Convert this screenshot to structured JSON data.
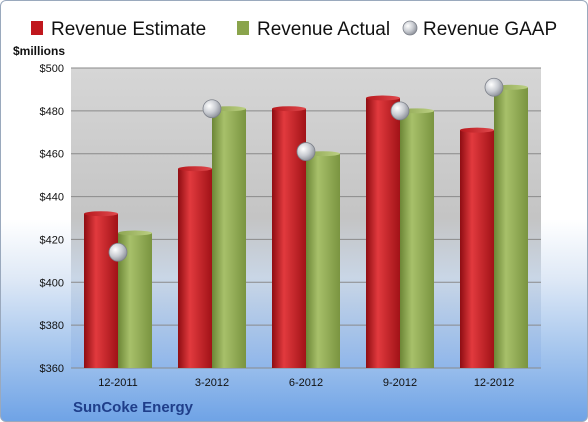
{
  "chart_data": {
    "type": "bar",
    "categories": [
      "12-2011",
      "3-2012",
      "6-2012",
      "9-2012",
      "12-2012"
    ],
    "series": [
      {
        "name": "Revenue Estimate",
        "kind": "bar",
        "color": "#c0171d",
        "values": [
          432,
          453,
          481,
          486,
          471
        ]
      },
      {
        "name": "Revenue Actual",
        "kind": "bar",
        "color": "#8aa44c",
        "values": [
          423,
          481,
          460,
          480,
          491
        ]
      },
      {
        "name": "Revenue GAAP",
        "kind": "marker",
        "color": "#c4c8cf",
        "values": [
          414,
          481,
          461,
          480,
          491
        ]
      }
    ],
    "ylabel": "$millions",
    "ylim": [
      360,
      500
    ],
    "yticks": [
      {
        "value": 360,
        "label": "$360"
      },
      {
        "value": 380,
        "label": "$380"
      },
      {
        "value": 400,
        "label": "$400"
      },
      {
        "value": 420,
        "label": "$420"
      },
      {
        "value": 440,
        "label": "$440"
      },
      {
        "value": 460,
        "label": "$460"
      },
      {
        "value": 480,
        "label": "$480"
      },
      {
        "value": 500,
        "label": "$500"
      }
    ],
    "legend_position": "top",
    "grid": true
  },
  "footer": {
    "company": "SunCoke Energy"
  }
}
